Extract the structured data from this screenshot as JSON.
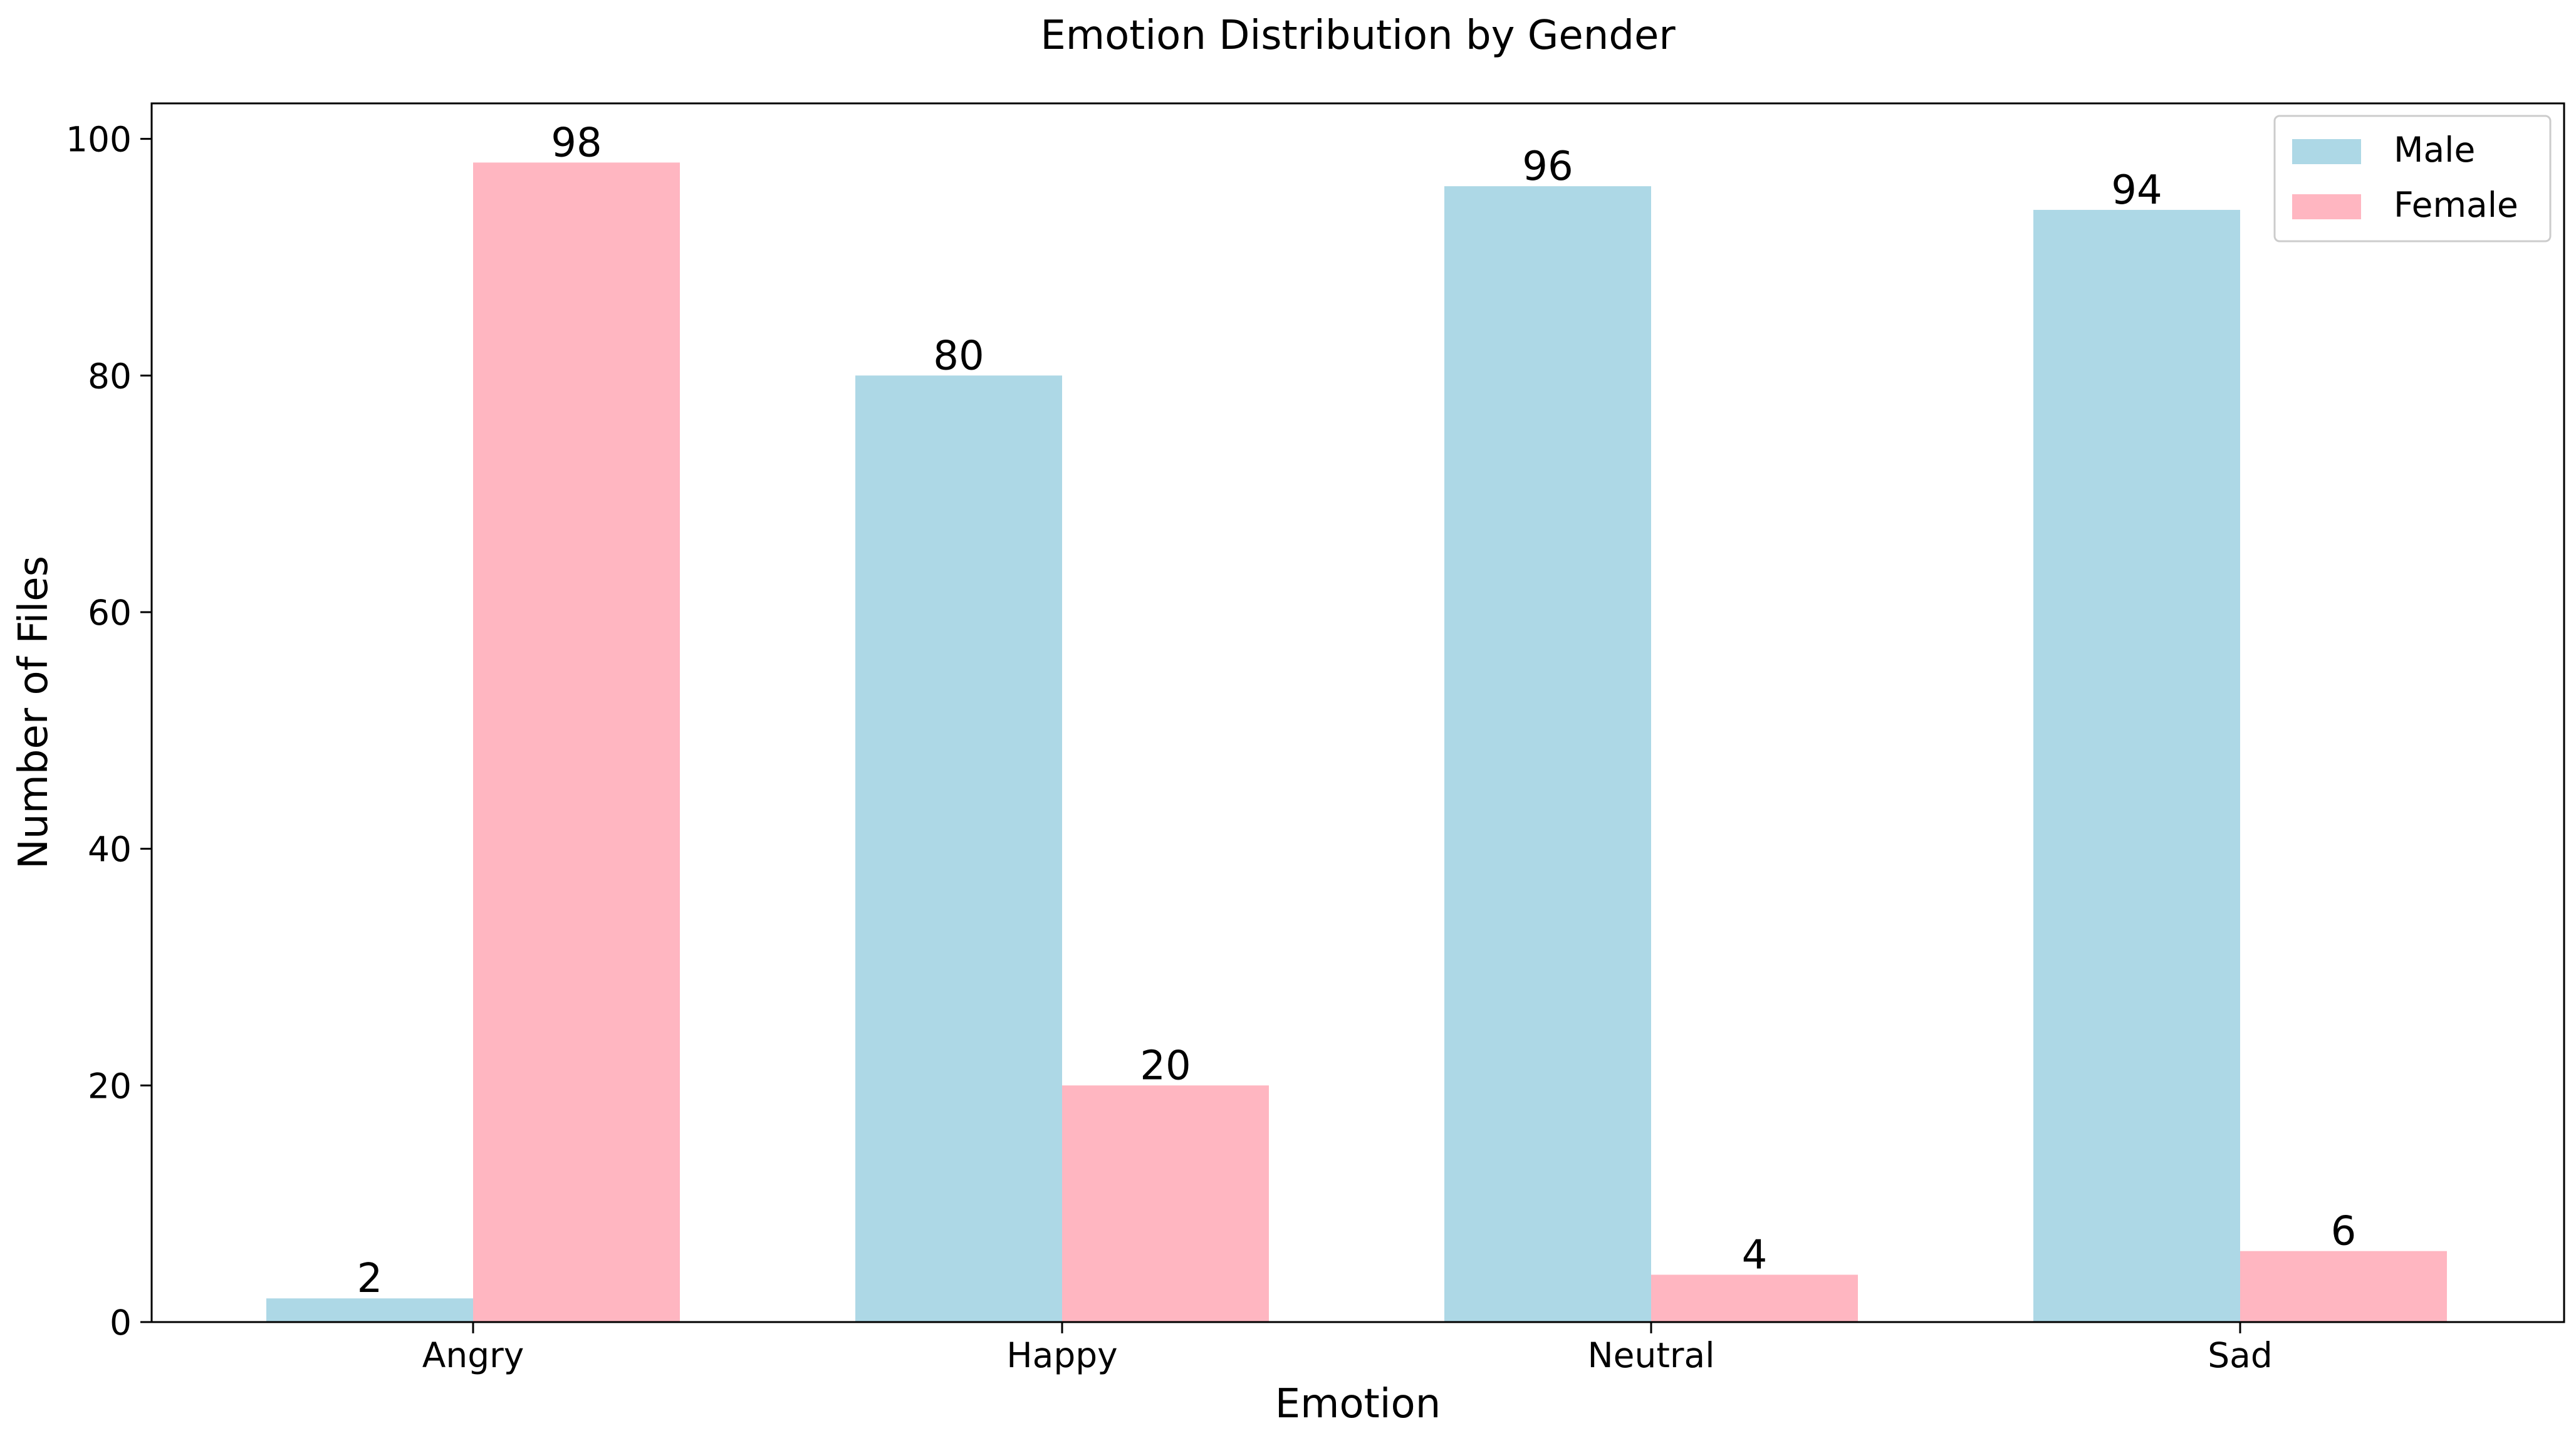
{
  "chart_data": {
    "type": "bar",
    "title": "Emotion Distribution by Gender",
    "xlabel": "Emotion",
    "ylabel": "Number of Files",
    "categories": [
      "Angry",
      "Happy",
      "Neutral",
      "Sad"
    ],
    "series": [
      {
        "name": "Male",
        "values": [
          2,
          80,
          96,
          94
        ],
        "color": "#add8e6"
      },
      {
        "name": "Female",
        "values": [
          98,
          20,
          4,
          6
        ],
        "color": "#ffb6c1"
      }
    ],
    "ylim": [
      0,
      103
    ],
    "yticks": [
      0,
      20,
      40,
      60,
      80,
      100
    ],
    "grid": false,
    "legend_position": "top-right",
    "data_labels": true
  }
}
